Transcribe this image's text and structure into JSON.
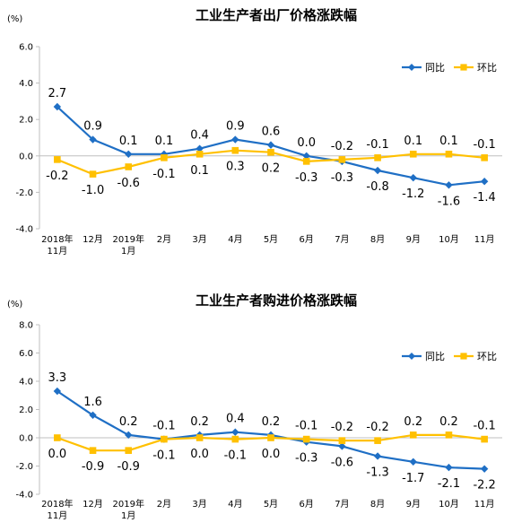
{
  "chart_data": [
    {
      "type": "line",
      "title": "工业生产者出厂价格涨跌幅",
      "unit": "(%)",
      "ylim": [
        -4.0,
        6.0
      ],
      "yticks": [
        "6.0",
        "4.0",
        "2.0",
        "0.0",
        "-2.0",
        "-4.0"
      ],
      "categories": [
        [
          "2018年",
          "11月"
        ],
        [
          "12月"
        ],
        [
          "2019年",
          "1月"
        ],
        [
          "2月"
        ],
        [
          "3月"
        ],
        [
          "4月"
        ],
        [
          "5月"
        ],
        [
          "6月"
        ],
        [
          "7月"
        ],
        [
          "8月"
        ],
        [
          "9月"
        ],
        [
          "10月"
        ],
        [
          "11月"
        ]
      ],
      "legend_position": "top-right",
      "series": [
        {
          "name": "同比",
          "color": "#1F6FC5",
          "marker": "diamond",
          "values": [
            2.7,
            0.9,
            0.1,
            0.1,
            0.4,
            0.9,
            0.6,
            0.0,
            -0.3,
            -0.8,
            -1.2,
            -1.6,
            -1.4
          ],
          "labels": [
            "2.7",
            "0.9",
            "0.1",
            "0.1",
            "0.4",
            "0.9",
            "0.6",
            "0.0",
            "-0.3",
            "-0.8",
            "-1.2",
            "-1.6",
            "-1.4"
          ],
          "label_pos": [
            "above",
            "above",
            "above",
            "above",
            "above",
            "above",
            "above",
            "above",
            "below",
            "below",
            "below",
            "below",
            "below"
          ]
        },
        {
          "name": "环比",
          "color": "#FFC000",
          "marker": "square",
          "values": [
            -0.2,
            -1.0,
            -0.6,
            -0.1,
            0.1,
            0.3,
            0.2,
            -0.3,
            -0.2,
            -0.1,
            0.1,
            0.1,
            -0.1
          ],
          "labels": [
            "-0.2",
            "-1.0",
            "-0.6",
            "-0.1",
            "0.1",
            "0.3",
            "0.2",
            "-0.3",
            "-0.2",
            "-0.1",
            "0.1",
            "0.1",
            "-0.1"
          ],
          "label_pos": [
            "below",
            "below",
            "below",
            "below",
            "below",
            "below",
            "below",
            "below",
            "above",
            "above",
            "above",
            "above",
            "above"
          ]
        }
      ]
    },
    {
      "type": "line",
      "title": "工业生产者购进价格涨跌幅",
      "unit": "(%)",
      "ylim": [
        -4.0,
        8.0
      ],
      "yticks": [
        "8.0",
        "6.0",
        "4.0",
        "2.0",
        "0.0",
        "-2.0",
        "-4.0"
      ],
      "categories": [
        [
          "2018年",
          "11月"
        ],
        [
          "12月"
        ],
        [
          "2019年",
          "1月"
        ],
        [
          "2月"
        ],
        [
          "3月"
        ],
        [
          "4月"
        ],
        [
          "5月"
        ],
        [
          "6月"
        ],
        [
          "7月"
        ],
        [
          "8月"
        ],
        [
          "9月"
        ],
        [
          "10月"
        ],
        [
          "11月"
        ]
      ],
      "legend_position": "top-right",
      "series": [
        {
          "name": "同比",
          "color": "#1F6FC5",
          "marker": "diamond",
          "values": [
            3.3,
            1.6,
            0.2,
            -0.1,
            0.2,
            0.4,
            0.2,
            -0.3,
            -0.6,
            -1.3,
            -1.7,
            -2.1,
            -2.2
          ],
          "labels": [
            "3.3",
            "1.6",
            "0.2",
            "-0.1",
            "0.2",
            "0.4",
            "0.2",
            "-0.3",
            "-0.6",
            "-1.3",
            "-1.7",
            "-2.1",
            "-2.2"
          ],
          "label_pos": [
            "above",
            "above",
            "above",
            "below",
            "above",
            "above",
            "above",
            "below",
            "below",
            "below",
            "below",
            "below",
            "below"
          ]
        },
        {
          "name": "环比",
          "color": "#FFC000",
          "marker": "square",
          "values": [
            0.0,
            -0.9,
            -0.9,
            -0.1,
            0.0,
            -0.1,
            0.0,
            -0.1,
            -0.2,
            -0.2,
            0.2,
            0.2,
            -0.1
          ],
          "labels": [
            "0.0",
            "-0.9",
            "-0.9",
            "-0.1",
            "0.0",
            "-0.1",
            "0.0",
            "-0.1",
            "-0.2",
            "-0.2",
            "0.2",
            "0.2",
            "-0.1"
          ],
          "label_pos": [
            "below",
            "below",
            "below",
            "above",
            "below",
            "below",
            "below",
            "above",
            "above",
            "above",
            "above",
            "above",
            "above"
          ]
        }
      ]
    }
  ]
}
